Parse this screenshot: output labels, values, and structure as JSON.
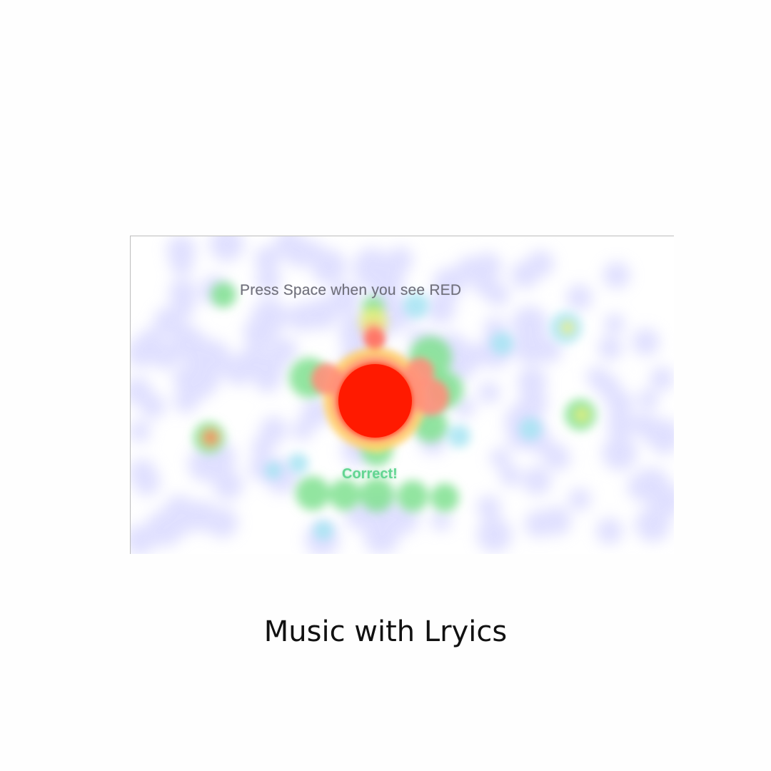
{
  "screen": {
    "instruction": "Press Space when you see RED",
    "feedback": "Correct!"
  },
  "caption": "Music with Lryics",
  "colors": {
    "target": "#ff1a00",
    "feedback": "#63d592",
    "heat_low": "#c8c8ff",
    "heat_mid": "#7fe08f",
    "heat_high": "#ff3b1a"
  }
}
